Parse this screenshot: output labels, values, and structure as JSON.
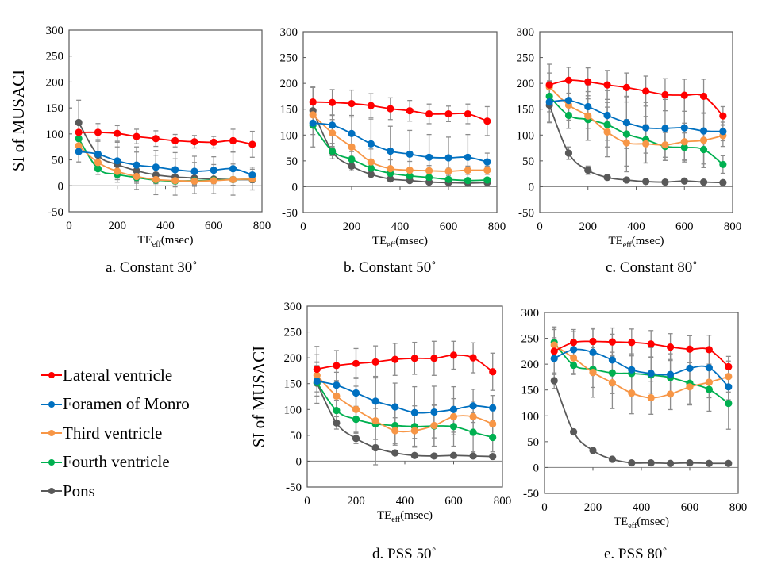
{
  "figure": {
    "captions": [
      "a. Constant 30˚",
      "b. Constant 50˚",
      "c. Constant 80˚",
      "d. PSS 50˚",
      "e. PSS 80˚"
    ]
  },
  "legend": {
    "items": [
      {
        "label": "Lateral ventricle",
        "color": "#ff0000"
      },
      {
        "label": "Foramen of Monro",
        "color": "#0070c0"
      },
      {
        "label": "Third ventricle",
        "color": "#f79646"
      },
      {
        "label": "Fourth ventricle",
        "color": "#00b050"
      },
      {
        "label": "Pons",
        "color": "#595959"
      }
    ]
  },
  "chart_data": [
    {
      "id": "a",
      "type": "line",
      "title": "a. Constant 30˚",
      "xlabel": "TEeff (msec)",
      "ylabel": "SI of MUSACI",
      "xlim": [
        0,
        800
      ],
      "ylim": [
        -50,
        300
      ],
      "xticks": [
        0,
        200,
        400,
        600,
        800
      ],
      "yticks": [
        -50,
        0,
        50,
        100,
        150,
        200,
        250,
        300
      ],
      "grid": false,
      "x": [
        40,
        120,
        200,
        280,
        360,
        440,
        520,
        600,
        680,
        760
      ],
      "series": [
        {
          "name": "Lateral ventricle",
          "values": [
            103,
            103,
            101,
            95,
            91,
            87,
            85,
            84,
            87,
            80
          ],
          "err": [
            0,
            17,
            15,
            14,
            15,
            12,
            12,
            11,
            22,
            25
          ]
        },
        {
          "name": "Foramen of Monro",
          "values": [
            66,
            61,
            48,
            40,
            36,
            31,
            28,
            30,
            33,
            21
          ],
          "err": [
            20,
            25,
            36,
            35,
            32,
            33,
            29,
            26,
            32,
            15
          ]
        },
        {
          "name": "Third ventricle",
          "values": [
            77,
            45,
            28,
            18,
            12,
            10,
            9,
            10,
            12,
            13
          ],
          "err": [
            0,
            15,
            12,
            8,
            6,
            6,
            6,
            4,
            5,
            4
          ]
        },
        {
          "name": "Fourth ventricle",
          "values": [
            91,
            33,
            22,
            16,
            11,
            9,
            10,
            11,
            12,
            13
          ],
          "err": [
            0,
            11,
            10,
            8,
            6,
            10,
            9,
            4,
            5,
            4
          ]
        },
        {
          "name": "Pons",
          "values": [
            122,
            59,
            41,
            29,
            21,
            17,
            15,
            13,
            12,
            12
          ],
          "err": [
            43,
            30,
            34,
            36,
            38,
            35,
            30,
            28,
            30,
            20
          ]
        }
      ]
    },
    {
      "id": "b",
      "type": "line",
      "title": "b. Constant 50˚",
      "xlabel": "TEeff (msec)",
      "ylabel": "",
      "xlim": [
        0,
        800
      ],
      "ylim": [
        -50,
        300
      ],
      "xticks": [
        0,
        200,
        400,
        600,
        800
      ],
      "yticks": [
        -50,
        0,
        50,
        100,
        150,
        200,
        250,
        300
      ],
      "grid": false,
      "x": [
        40,
        120,
        200,
        280,
        360,
        440,
        520,
        600,
        680,
        760
      ],
      "series": [
        {
          "name": "Lateral ventricle",
          "values": [
            164,
            163,
            161,
            157,
            151,
            147,
            141,
            141,
            141,
            127
          ],
          "err": [
            28,
            25,
            26,
            23,
            21,
            20,
            19,
            15,
            19,
            28
          ]
        },
        {
          "name": "Foramen of Monro",
          "values": [
            123,
            119,
            103,
            83,
            69,
            63,
            57,
            56,
            57,
            48
          ],
          "err": [
            0,
            20,
            35,
            48,
            48,
            46,
            44,
            40,
            44,
            17
          ]
        },
        {
          "name": "Third ventricle",
          "values": [
            139,
            104,
            77,
            48,
            35,
            32,
            31,
            30,
            32,
            32
          ],
          "err": [
            0,
            26,
            30,
            25,
            17,
            17,
            10,
            8,
            8,
            8
          ]
        },
        {
          "name": "Fourth ventricle",
          "values": [
            119,
            69,
            53,
            36,
            26,
            21,
            18,
            14,
            12,
            13
          ],
          "err": [
            42,
            15,
            8,
            7,
            5,
            4,
            4,
            4,
            4,
            4
          ]
        },
        {
          "name": "Pons",
          "values": [
            147,
            68,
            40,
            24,
            15,
            12,
            9,
            8,
            7,
            8
          ],
          "err": [
            46,
            8,
            9,
            5,
            3,
            3,
            2,
            2,
            2,
            2
          ]
        }
      ]
    },
    {
      "id": "c",
      "type": "line",
      "title": "c. Constant 80˚",
      "xlabel": "TEeff (msec)",
      "ylabel": "",
      "xlim": [
        0,
        800
      ],
      "ylim": [
        -50,
        300
      ],
      "xticks": [
        0,
        200,
        400,
        600,
        800
      ],
      "yticks": [
        -50,
        0,
        50,
        100,
        150,
        200,
        250,
        300
      ],
      "grid": false,
      "x": [
        40,
        120,
        200,
        280,
        360,
        440,
        520,
        600,
        680,
        760
      ],
      "series": [
        {
          "name": "Lateral ventricle",
          "values": [
            197,
            206,
            203,
            197,
            192,
            185,
            178,
            177,
            175,
            137
          ],
          "err": [
            40,
            25,
            27,
            28,
            28,
            29,
            31,
            31,
            33,
            18
          ]
        },
        {
          "name": "Foramen of Monro",
          "values": [
            164,
            167,
            155,
            138,
            124,
            114,
            113,
            114,
            108,
            107
          ],
          "err": [
            40,
            38,
            42,
            48,
            50,
            49,
            56,
            61,
            64,
            18
          ]
        },
        {
          "name": "Third ventricle",
          "values": [
            193,
            158,
            137,
            106,
            85,
            83,
            81,
            87,
            90,
            99
          ],
          "err": [
            27,
            45,
            47,
            48,
            45,
            37,
            30,
            36,
            53,
            21
          ]
        },
        {
          "name": "Fourth ventricle",
          "values": [
            175,
            138,
            130,
            120,
            102,
            91,
            78,
            76,
            72,
            43
          ],
          "err": [
            30,
            25,
            40,
            43,
            73,
            45,
            27,
            28,
            35,
            17
          ]
        },
        {
          "name": "Pons",
          "values": [
            158,
            65,
            32,
            18,
            13,
            10,
            9,
            11,
            9,
            8
          ],
          "err": [
            33,
            12,
            8,
            3,
            3,
            2,
            2,
            2,
            2,
            2
          ]
        }
      ]
    },
    {
      "id": "d",
      "type": "line",
      "title": "d. PSS 50˚",
      "xlabel": "TEeff (msec)",
      "ylabel": "SI of MUSACI",
      "xlim": [
        0,
        800
      ],
      "ylim": [
        -50,
        300
      ],
      "xticks": [
        0,
        200,
        400,
        600,
        800
      ],
      "yticks": [
        -50,
        0,
        50,
        100,
        150,
        200,
        250,
        300
      ],
      "grid": false,
      "x": [
        40,
        120,
        200,
        280,
        360,
        440,
        520,
        600,
        680,
        760
      ],
      "series": [
        {
          "name": "Lateral ventricle",
          "values": [
            178,
            185,
            189,
            192,
            197,
            199,
            199,
            205,
            200,
            173
          ],
          "err": [
            44,
            29,
            29,
            31,
            31,
            31,
            33,
            27,
            29,
            36
          ]
        },
        {
          "name": "Foramen of Monro",
          "values": [
            155,
            147,
            132,
            116,
            105,
            94,
            95,
            100,
            107,
            103
          ],
          "err": [
            30,
            25,
            30,
            48,
            46,
            50,
            50,
            44,
            32,
            24
          ]
        },
        {
          "name": "Third ventricle",
          "values": [
            166,
            126,
            100,
            78,
            59,
            59,
            69,
            86,
            86,
            72
          ],
          "err": [
            40,
            28,
            45,
            85,
            25,
            30,
            40,
            35,
            30,
            30
          ]
        },
        {
          "name": "Fourth ventricle",
          "values": [
            152,
            98,
            81,
            72,
            69,
            67,
            68,
            67,
            56,
            46
          ],
          "err": [
            40,
            20,
            25,
            30,
            38,
            40,
            40,
            38,
            38,
            28
          ]
        },
        {
          "name": "Pons",
          "values": [
            151,
            74,
            44,
            26,
            16,
            11,
            10,
            11,
            10,
            9
          ],
          "err": [
            40,
            12,
            10,
            5,
            3,
            2,
            2,
            2,
            2,
            2
          ]
        }
      ]
    },
    {
      "id": "e",
      "type": "line",
      "title": "e. PSS 80˚",
      "xlabel": "TEeff (msec)",
      "ylabel": "",
      "xlim": [
        0,
        800
      ],
      "ylim": [
        -50,
        300
      ],
      "xticks": [
        0,
        200,
        400,
        600,
        800
      ],
      "yticks": [
        -50,
        0,
        50,
        100,
        150,
        200,
        250,
        300
      ],
      "grid": false,
      "x": [
        40,
        120,
        200,
        280,
        360,
        440,
        520,
        600,
        680,
        760
      ],
      "series": [
        {
          "name": "Lateral ventricle",
          "values": [
            225,
            242,
            244,
            243,
            242,
            239,
            233,
            229,
            228,
            195
          ],
          "err": [
            45,
            25,
            26,
            27,
            26,
            26,
            26,
            26,
            28,
            20
          ]
        },
        {
          "name": "Foramen of Monro",
          "values": [
            211,
            228,
            223,
            208,
            189,
            182,
            180,
            192,
            193,
            156
          ],
          "err": [
            40,
            35,
            45,
            50,
            50,
            50,
            40,
            35,
            40,
            25
          ]
        },
        {
          "name": "Third ventricle",
          "values": [
            237,
            212,
            184,
            164,
            144,
            135,
            142,
            156,
            165,
            176
          ],
          "err": [
            30,
            30,
            48,
            50,
            40,
            32,
            30,
            35,
            30,
            30
          ]
        },
        {
          "name": "Fourth ventricle",
          "values": [
            242,
            198,
            190,
            183,
            182,
            179,
            174,
            163,
            151,
            124
          ],
          "err": [
            30,
            18,
            35,
            40,
            38,
            35,
            35,
            40,
            42,
            50
          ]
        },
        {
          "name": "Pons",
          "values": [
            168,
            69,
            33,
            16,
            9,
            9,
            8,
            9,
            8,
            8
          ],
          "err": [
            15,
            5,
            3,
            3,
            2,
            2,
            2,
            2,
            2,
            2
          ]
        }
      ]
    }
  ]
}
